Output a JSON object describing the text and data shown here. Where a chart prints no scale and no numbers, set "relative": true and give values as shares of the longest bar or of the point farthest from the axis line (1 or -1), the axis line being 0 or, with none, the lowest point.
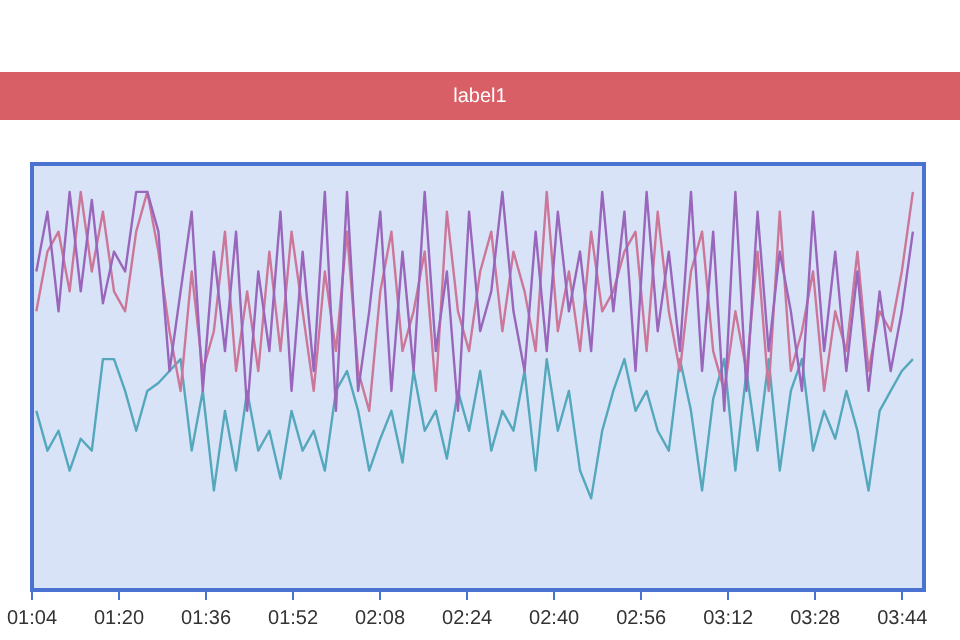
{
  "chart_data": {
    "type": "line",
    "title": "label1",
    "relative": true,
    "legend": false,
    "grid": false,
    "marker": "none",
    "line_style": "solid",
    "tick_labels": "x",
    "x": [
      1.08,
      1.114,
      1.148,
      1.182,
      1.216,
      1.25,
      1.284,
      1.318,
      1.352,
      1.386,
      1.42,
      1.454,
      1.488,
      1.522,
      1.556,
      1.59,
      1.624,
      1.658,
      1.692,
      1.726,
      1.76,
      1.794,
      1.828,
      1.862,
      1.896,
      1.93,
      1.964,
      1.998,
      2.032,
      2.066,
      2.1,
      2.134,
      2.168,
      2.202,
      2.236,
      2.27,
      2.304,
      2.338,
      2.372,
      2.406,
      2.44,
      2.474,
      2.508,
      2.542,
      2.576,
      2.61,
      2.644,
      2.678,
      2.712,
      2.746,
      2.78,
      2.814,
      2.848,
      2.882,
      2.916,
      2.95,
      2.984,
      3.018,
      3.052,
      3.086,
      3.12,
      3.154,
      3.188,
      3.222,
      3.256,
      3.29,
      3.324,
      3.358,
      3.392,
      3.426,
      3.46,
      3.494,
      3.528,
      3.562,
      3.596,
      3.63,
      3.664,
      3.698,
      3.732,
      3.766
    ],
    "xlim": [
      1.0667,
      3.8
    ],
    "xticks": [
      {
        "value": 1.0667,
        "label": "01:04"
      },
      {
        "value": 1.3333,
        "label": "01:20"
      },
      {
        "value": 1.6,
        "label": "01:36"
      },
      {
        "value": 1.8667,
        "label": "01:52"
      },
      {
        "value": 2.1333,
        "label": "02:08"
      },
      {
        "value": 2.4,
        "label": "02:24"
      },
      {
        "value": 2.6667,
        "label": "02:40"
      },
      {
        "value": 2.9333,
        "label": "02:56"
      },
      {
        "value": 3.2,
        "label": "03:12"
      },
      {
        "value": 3.4667,
        "label": "03:28"
      },
      {
        "value": 3.7333,
        "label": "03:44"
      }
    ],
    "series": [
      {
        "color": "#9966bb",
        "values": [
          0.8,
          0.95,
          0.7,
          1,
          0.75,
          0.98,
          0.72,
          0.85,
          0.8,
          1,
          1,
          0.9,
          0.55,
          0.75,
          0.95,
          0.5,
          0.85,
          0.6,
          0.9,
          0.45,
          0.8,
          0.6,
          0.95,
          0.5,
          0.85,
          0.55,
          1,
          0.45,
          1,
          0.5,
          0.7,
          0.95,
          0.5,
          0.85,
          0.55,
          1,
          0.6,
          0.8,
          0.45,
          0.95,
          0.65,
          0.75,
          1,
          0.7,
          0.55,
          0.9,
          0.6,
          0.95,
          0.7,
          0.85,
          0.6,
          1,
          0.7,
          0.95,
          0.55,
          1,
          0.65,
          0.85,
          0.6,
          1,
          0.55,
          0.9,
          0.45,
          1,
          0.5,
          0.95,
          0.6,
          0.85,
          0.7,
          0.5,
          0.95,
          0.6,
          0.85,
          0.55,
          0.8,
          0.5,
          0.75,
          0.55,
          0.7,
          0.9
        ]
      },
      {
        "color": "#cc7799",
        "values": [
          0.7,
          0.85,
          0.9,
          0.75,
          1,
          0.8,
          0.95,
          0.75,
          0.7,
          0.9,
          1,
          0.85,
          0.65,
          0.5,
          0.8,
          0.55,
          0.65,
          0.9,
          0.55,
          0.75,
          0.55,
          0.85,
          0.6,
          0.9,
          0.7,
          0.5,
          0.8,
          0.6,
          0.9,
          0.55,
          0.45,
          0.75,
          0.9,
          0.6,
          0.7,
          0.85,
          0.5,
          0.95,
          0.7,
          0.6,
          0.8,
          0.9,
          0.65,
          0.85,
          0.75,
          0.6,
          1,
          0.65,
          0.8,
          0.6,
          0.9,
          0.7,
          0.75,
          0.85,
          0.9,
          0.6,
          0.95,
          0.7,
          0.55,
          0.8,
          0.9,
          0.6,
          0.5,
          0.7,
          0.55,
          0.85,
          0.5,
          0.95,
          0.55,
          0.65,
          0.8,
          0.5,
          0.7,
          0.6,
          0.85,
          0.55,
          0.7,
          0.65,
          0.8,
          1
        ]
      },
      {
        "color": "#55a8bb",
        "values": [
          0.45,
          0.35,
          0.4,
          0.3,
          0.38,
          0.35,
          0.58,
          0.58,
          0.5,
          0.4,
          0.5,
          0.52,
          0.55,
          0.58,
          0.35,
          0.5,
          0.25,
          0.45,
          0.3,
          0.5,
          0.35,
          0.4,
          0.28,
          0.45,
          0.35,
          0.4,
          0.3,
          0.5,
          0.55,
          0.45,
          0.3,
          0.38,
          0.45,
          0.32,
          0.55,
          0.4,
          0.45,
          0.33,
          0.5,
          0.4,
          0.55,
          0.35,
          0.45,
          0.4,
          0.55,
          0.3,
          0.58,
          0.4,
          0.5,
          0.3,
          0.23,
          0.4,
          0.5,
          0.58,
          0.45,
          0.5,
          0.4,
          0.35,
          0.58,
          0.45,
          0.25,
          0.48,
          0.58,
          0.3,
          0.55,
          0.35,
          0.58,
          0.3,
          0.5,
          0.58,
          0.35,
          0.45,
          0.38,
          0.5,
          0.4,
          0.25,
          0.45,
          0.5,
          0.55,
          0.58
        ]
      }
    ]
  }
}
